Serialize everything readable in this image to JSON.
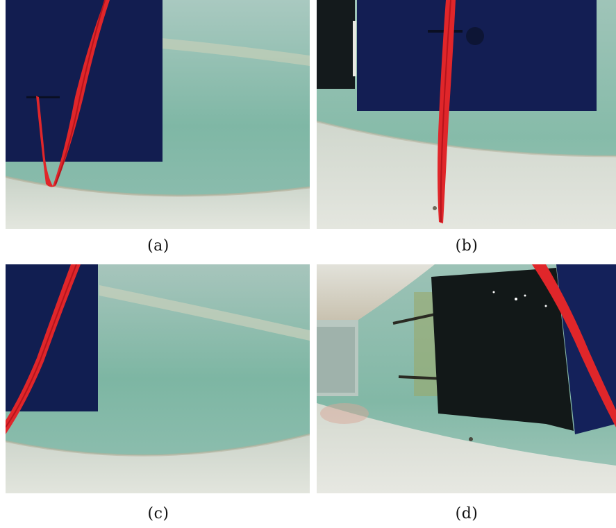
{
  "panels": [
    {
      "id": "a",
      "caption": "(a)"
    },
    {
      "id": "b",
      "caption": "(b)"
    },
    {
      "id": "c",
      "caption": "(c)"
    },
    {
      "id": "d",
      "caption": "(d)"
    }
  ],
  "colors": {
    "water": "#7fb5a4",
    "water_light": "#a9cfc4",
    "floor": "#d8ddd4",
    "dark_panel": "#16235a",
    "black_panel": "#121818",
    "ribbon": "#e0262a",
    "ribbon_dark": "#b5141c"
  }
}
